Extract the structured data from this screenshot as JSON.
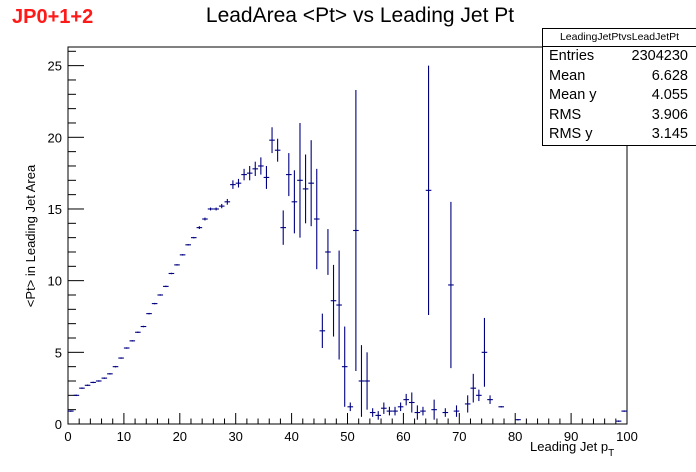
{
  "tag": "JP0+1+2",
  "stats": {
    "name": "LeadingJetPtvsLeadJetPt",
    "rows": [
      {
        "label": "Entries",
        "value": "2304230"
      },
      {
        "label": "Mean",
        "value": "6.628"
      },
      {
        "label": "Mean y",
        "value": "4.055"
      },
      {
        "label": "RMS",
        "value": "3.906"
      },
      {
        "label": "RMS y",
        "value": "3.145"
      }
    ]
  },
  "chart_data": {
    "type": "scatter",
    "title": "LeadArea <Pt> vs Leading Jet Pt",
    "xlabel": "Leading Jet p",
    "xlabel_sub": "T",
    "ylabel": "<Pt> in Leading Jet Area",
    "xlim": [
      0,
      100
    ],
    "ylim": [
      0,
      26.3
    ],
    "xticks": [
      0,
      10,
      20,
      30,
      40,
      50,
      60,
      70,
      80,
      90,
      100
    ],
    "yticks": [
      0,
      5,
      10,
      15,
      20,
      25
    ],
    "bin_width": 1,
    "color": "#000080",
    "points": [
      {
        "x": 0.5,
        "y": 0.9,
        "e": 0.05
      },
      {
        "x": 1.5,
        "y": 2.0,
        "e": 0.05
      },
      {
        "x": 2.5,
        "y": 2.5,
        "e": 0.05
      },
      {
        "x": 3.5,
        "y": 2.7,
        "e": 0.05
      },
      {
        "x": 4.5,
        "y": 2.9,
        "e": 0.05
      },
      {
        "x": 5.5,
        "y": 3.0,
        "e": 0.05
      },
      {
        "x": 6.5,
        "y": 3.2,
        "e": 0.05
      },
      {
        "x": 7.5,
        "y": 3.5,
        "e": 0.05
      },
      {
        "x": 8.5,
        "y": 4.0,
        "e": 0.05
      },
      {
        "x": 9.5,
        "y": 4.6,
        "e": 0.05
      },
      {
        "x": 10.5,
        "y": 5.3,
        "e": 0.05
      },
      {
        "x": 11.5,
        "y": 5.8,
        "e": 0.05
      },
      {
        "x": 12.5,
        "y": 6.4,
        "e": 0.05
      },
      {
        "x": 13.5,
        "y": 6.8,
        "e": 0.05
      },
      {
        "x": 14.5,
        "y": 7.7,
        "e": 0.05
      },
      {
        "x": 15.5,
        "y": 8.4,
        "e": 0.05
      },
      {
        "x": 16.5,
        "y": 9.0,
        "e": 0.05
      },
      {
        "x": 17.5,
        "y": 9.6,
        "e": 0.05
      },
      {
        "x": 18.5,
        "y": 10.5,
        "e": 0.05
      },
      {
        "x": 19.5,
        "y": 11.1,
        "e": 0.05
      },
      {
        "x": 20.5,
        "y": 11.8,
        "e": 0.05
      },
      {
        "x": 21.5,
        "y": 12.5,
        "e": 0.05
      },
      {
        "x": 22.5,
        "y": 13.0,
        "e": 0.05
      },
      {
        "x": 23.5,
        "y": 13.7,
        "e": 0.1
      },
      {
        "x": 24.5,
        "y": 14.3,
        "e": 0.1
      },
      {
        "x": 25.5,
        "y": 15.0,
        "e": 0.1
      },
      {
        "x": 26.5,
        "y": 15.0,
        "e": 0.1
      },
      {
        "x": 27.5,
        "y": 15.2,
        "e": 0.15
      },
      {
        "x": 28.5,
        "y": 15.5,
        "e": 0.2
      },
      {
        "x": 29.5,
        "y": 16.7,
        "e": 0.3
      },
      {
        "x": 30.5,
        "y": 16.8,
        "e": 0.3
      },
      {
        "x": 31.5,
        "y": 17.4,
        "e": 0.4
      },
      {
        "x": 32.5,
        "y": 17.5,
        "e": 0.5
      },
      {
        "x": 33.5,
        "y": 17.8,
        "e": 0.5
      },
      {
        "x": 34.5,
        "y": 18.0,
        "e": 0.6
      },
      {
        "x": 35.5,
        "y": 17.2,
        "e": 0.8
      },
      {
        "x": 36.5,
        "y": 19.8,
        "e": 0.9
      },
      {
        "x": 37.5,
        "y": 19.1,
        "e": 0.8
      },
      {
        "x": 38.5,
        "y": 13.7,
        "e": 1.2
      },
      {
        "x": 39.5,
        "y": 17.4,
        "e": 1.5
      },
      {
        "x": 40.5,
        "y": 15.5,
        "e": 2.2
      },
      {
        "x": 41.5,
        "y": 17.0,
        "e": 4.0
      },
      {
        "x": 42.5,
        "y": 16.4,
        "e": 2.4
      },
      {
        "x": 43.5,
        "y": 16.8,
        "e": 3.0
      },
      {
        "x": 44.5,
        "y": 14.3,
        "e": 3.5
      },
      {
        "x": 45.5,
        "y": 6.5,
        "e": 1.2
      },
      {
        "x": 46.5,
        "y": 12.0,
        "e": 1.6
      },
      {
        "x": 47.5,
        "y": 8.6,
        "e": 2.5
      },
      {
        "x": 48.5,
        "y": 8.3,
        "e": 3.8
      },
      {
        "x": 49.5,
        "y": 4.0,
        "e": 2.8
      },
      {
        "x": 50.5,
        "y": 1.2,
        "e": 0.3
      },
      {
        "x": 51.5,
        "y": 13.5,
        "e": 9.8
      },
      {
        "x": 52.5,
        "y": 3.0,
        "e": 2.5
      },
      {
        "x": 53.5,
        "y": 3.0,
        "e": 2.0
      },
      {
        "x": 54.5,
        "y": 0.8,
        "e": 0.3
      },
      {
        "x": 55.5,
        "y": 0.6,
        "e": 0.3
      },
      {
        "x": 56.5,
        "y": 1.1,
        "e": 0.4
      },
      {
        "x": 57.5,
        "y": 0.9,
        "e": 0.3
      },
      {
        "x": 58.5,
        "y": 0.9,
        "e": 0.3
      },
      {
        "x": 59.5,
        "y": 1.2,
        "e": 0.3
      },
      {
        "x": 60.5,
        "y": 1.7,
        "e": 0.4
      },
      {
        "x": 61.5,
        "y": 1.5,
        "e": 0.7
      },
      {
        "x": 62.5,
        "y": 0.8,
        "e": 0.5
      },
      {
        "x": 63.5,
        "y": 0.9,
        "e": 0.3
      },
      {
        "x": 64.5,
        "y": 16.3,
        "e": 8.7
      },
      {
        "x": 65.5,
        "y": 1.0,
        "e": 0.7
      },
      {
        "x": 67.5,
        "y": 0.8,
        "e": 0.3
      },
      {
        "x": 68.5,
        "y": 9.7,
        "e": 5.8
      },
      {
        "x": 69.5,
        "y": 0.9,
        "e": 0.4
      },
      {
        "x": 71.5,
        "y": 1.4,
        "e": 0.6
      },
      {
        "x": 72.5,
        "y": 2.5,
        "e": 1.0
      },
      {
        "x": 73.5,
        "y": 2.0,
        "e": 0.4
      },
      {
        "x": 74.5,
        "y": 5.0,
        "e": 2.4
      },
      {
        "x": 75.5,
        "y": 1.7,
        "e": 0.3
      },
      {
        "x": 77.5,
        "y": 1.2,
        "e": 0.05
      },
      {
        "x": 80.5,
        "y": 0.3,
        "e": 0.05
      },
      {
        "x": 98.5,
        "y": 0.2,
        "e": 0.05
      },
      {
        "x": 99.5,
        "y": 0.9,
        "e": 0.05
      }
    ]
  }
}
